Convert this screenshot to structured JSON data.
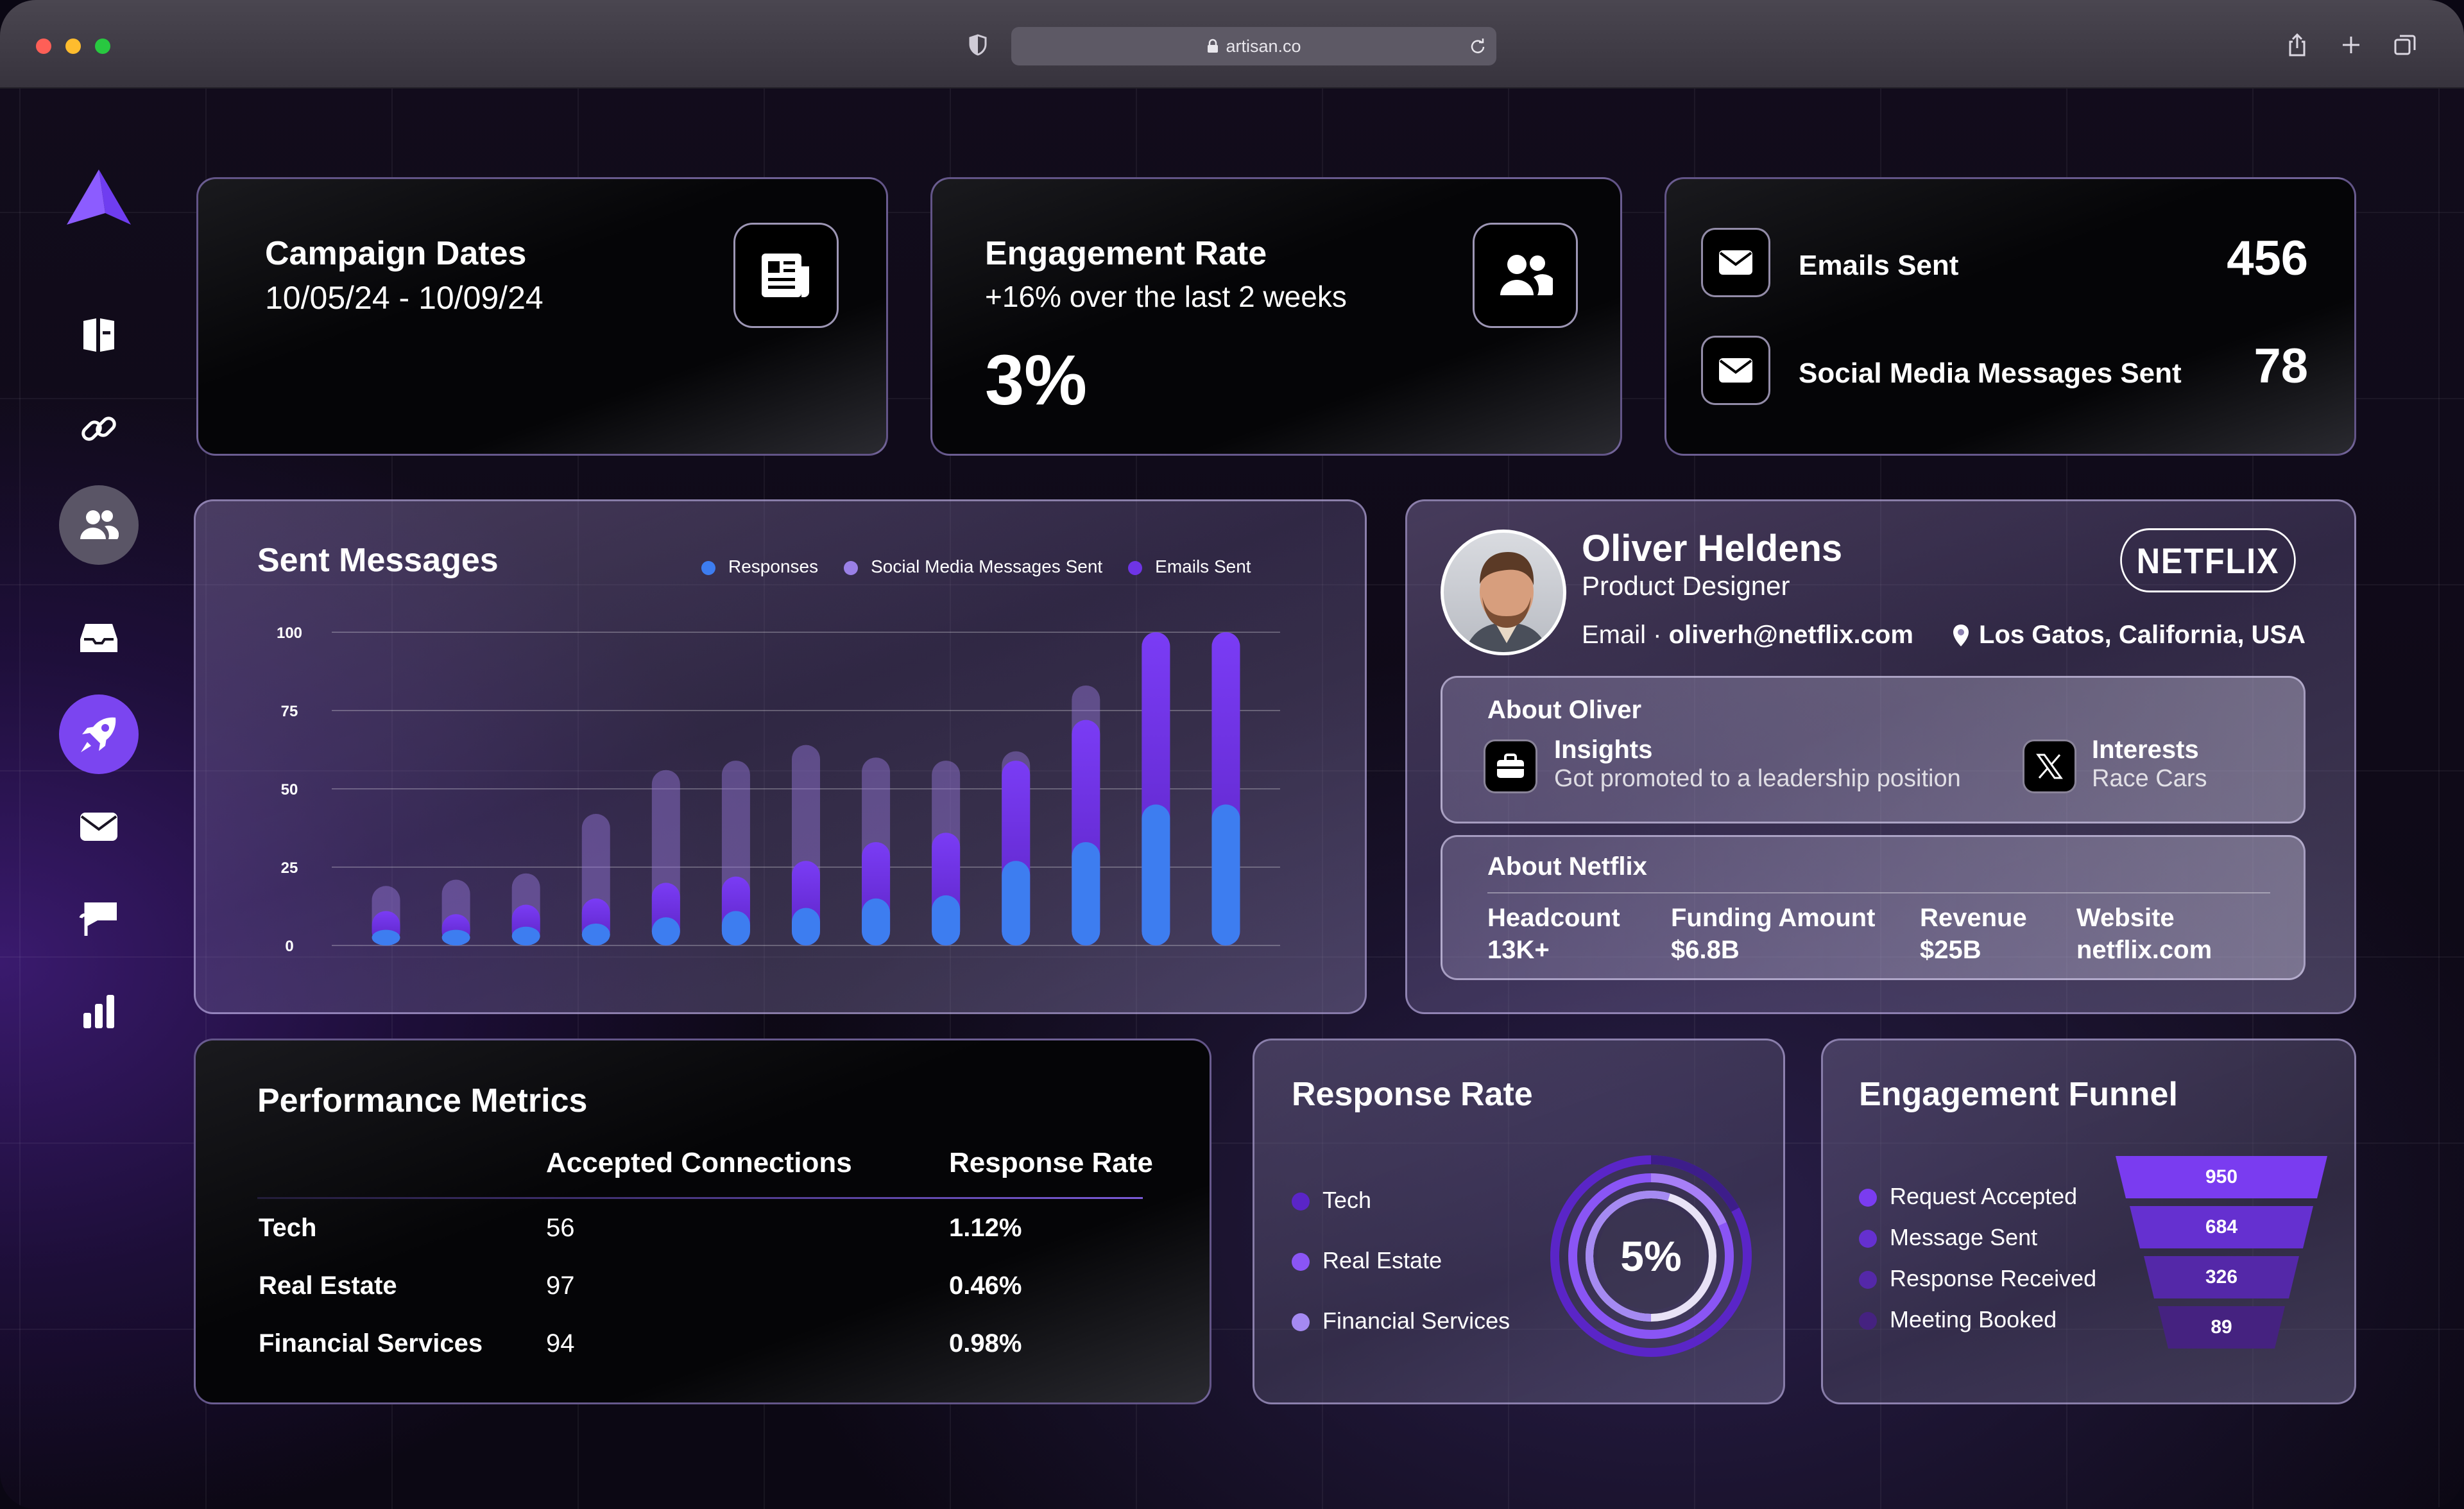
{
  "browser": {
    "url": "artisan.co"
  },
  "campaign": {
    "title": "Campaign Dates",
    "dates": "10/05/24 - 10/09/24"
  },
  "engagement": {
    "title": "Engagement Rate",
    "subtitle": "+16% over the last 2 weeks",
    "value": "3%"
  },
  "sent": {
    "emails_label": "Emails Sent",
    "emails_value": "456",
    "social_label": "Social Media Messages Sent",
    "social_value": "78"
  },
  "chart_data": {
    "type": "bar",
    "title": "Sent Messages",
    "legend_placement": "top-right",
    "series": [
      {
        "name": "Responses",
        "color": "#3d7df0",
        "values": [
          5,
          5,
          6,
          7,
          9,
          11,
          12,
          15,
          16,
          27,
          33,
          45,
          45
        ]
      },
      {
        "name": "Social Media Messages Sent",
        "color": "#6e34e6",
        "values": [
          11,
          10,
          13,
          15,
          20,
          22,
          27,
          33,
          36,
          59,
          72,
          100,
          100
        ]
      },
      {
        "name": "Emails Sent",
        "color": "#8a78c8",
        "values": [
          19,
          21,
          23,
          42,
          56,
          59,
          64,
          60,
          59,
          62,
          83,
          100,
          100
        ]
      }
    ],
    "yticks": [
      0,
      25,
      50,
      75,
      100
    ],
    "ylim": [
      0,
      100
    ],
    "grid": true
  },
  "profile": {
    "name": "Oliver Heldens",
    "role": "Product Designer",
    "email_label": "Email · ",
    "email": "oliverh@netflix.com",
    "location": "Los Gatos, California, USA",
    "company_logo": "NETFLIX",
    "about_title": "About Oliver",
    "insights_label": "Insights",
    "insights_value": "Got promoted to a leadership position",
    "interests_label": "Interests",
    "interests_value": "Race Cars",
    "company_title": "About Netflix",
    "facts": [
      {
        "label": "Headcount",
        "value": "13K+"
      },
      {
        "label": "Funding Amount",
        "value": "$6.8B"
      },
      {
        "label": "Revenue",
        "value": "$25B"
      },
      {
        "label": "Website",
        "value": "netflix.com"
      }
    ]
  },
  "performance": {
    "title": "Performance Metrics",
    "col1": "Accepted Connections",
    "col2": "Response Rate",
    "rows": [
      {
        "name": "Tech",
        "connections": "56",
        "rate": "1.12%"
      },
      {
        "name": "Real Estate",
        "connections": "97",
        "rate": "0.46%"
      },
      {
        "name": "Financial Services",
        "connections": "94",
        "rate": "0.98%"
      }
    ]
  },
  "response_rate": {
    "title": "Response Rate",
    "value": "5%",
    "items": [
      {
        "name": "Tech",
        "color": "#5a25c7"
      },
      {
        "name": "Real Estate",
        "color": "#8a55f5"
      },
      {
        "name": "Financial Services",
        "color": "#a58af2"
      }
    ]
  },
  "funnel": {
    "title": "Engagement Funnel",
    "items": [
      {
        "name": "Request Accepted",
        "value": "950",
        "color": "#7a3cf0"
      },
      {
        "name": "Message Sent",
        "value": "684",
        "color": "#6530d0"
      },
      {
        "name": "Response Received",
        "value": "326",
        "color": "#5428a8"
      },
      {
        "name": "Meeting Booked",
        "value": "89",
        "color": "#452280"
      }
    ]
  },
  "icons": {
    "logo": "artisan-logo-icon",
    "sidebar": [
      "book-icon",
      "link-icon",
      "users-icon",
      "inbox-icon",
      "rocket-icon",
      "mail-icon",
      "megaphone-icon",
      "bar-chart-icon"
    ]
  }
}
